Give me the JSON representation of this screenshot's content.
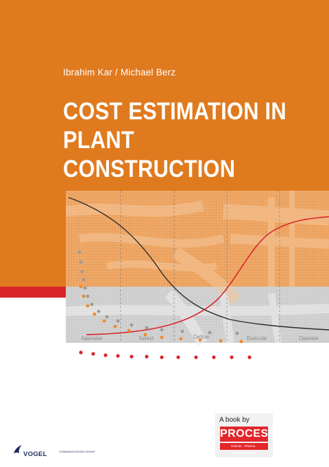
{
  "cover": {
    "authors": "Ibrahim Kar / Michael Berz",
    "title_line1": "COST ESTIMATION IN",
    "title_line2": "PLANT CONSTRUCTION",
    "colors": {
      "orange": "#e07a1f",
      "red": "#d9252a",
      "gray_band": "#cdcdcd"
    }
  },
  "illustration": {
    "phases": [
      "Appraise",
      "Select",
      "Define",
      "Execute",
      "Operate"
    ]
  },
  "publisher": {
    "a_book_by": "A book by",
    "logo_text": "PROCESS",
    "logo_subtitle": "Chemie · Pharma · Verfahrenstechnik"
  },
  "imprint": {
    "name": "VOGEL",
    "group": "COMMUNICATIONS GROUP"
  }
}
